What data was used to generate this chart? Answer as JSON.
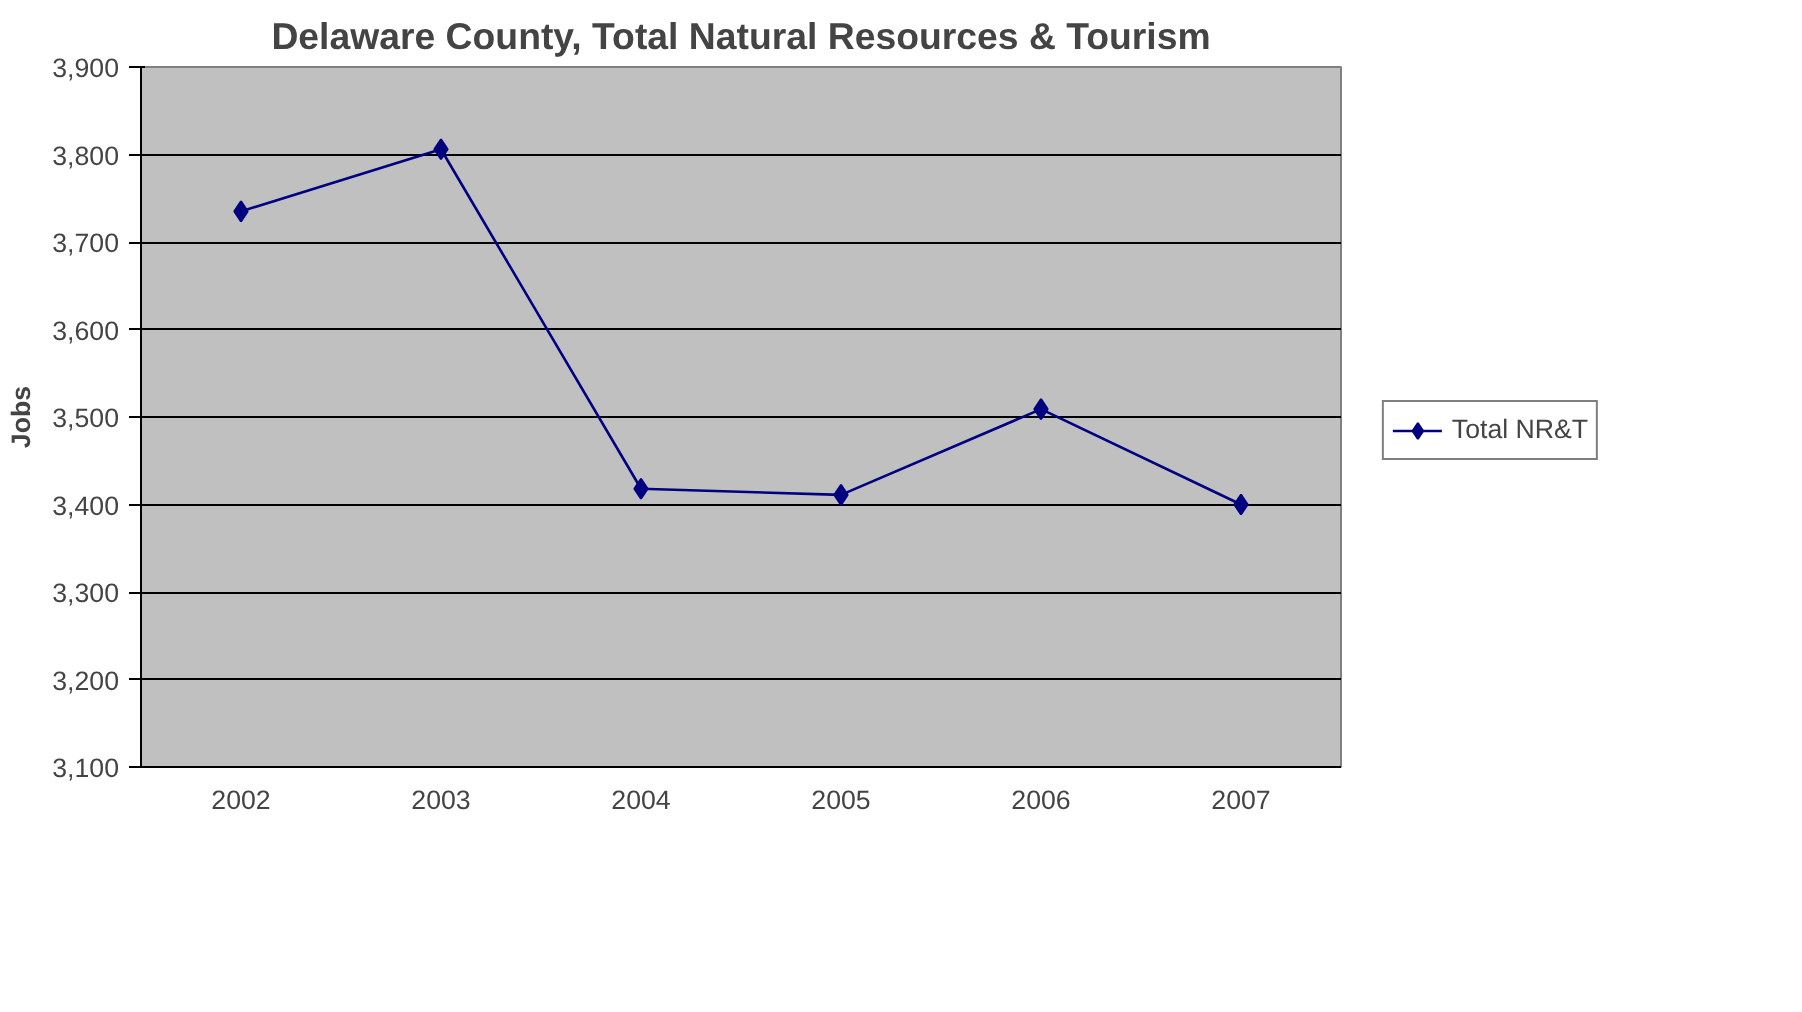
{
  "chart_data": {
    "type": "line",
    "title": "Delaware County, Total Natural Resources & Tourism",
    "ylabel": "Jobs",
    "categories": [
      "2002",
      "2003",
      "2004",
      "2005",
      "2006",
      "2007"
    ],
    "series": [
      {
        "name": "Total NR&T",
        "color": "#000080",
        "values": [
          3735,
          3806,
          3418,
          3411,
          3509,
          3400
        ]
      }
    ],
    "ylim": [
      3100,
      3900
    ],
    "yticks": [
      {
        "value": 3100,
        "label": "3,100"
      },
      {
        "value": 3200,
        "label": "3,200"
      },
      {
        "value": 3300,
        "label": "3,300"
      },
      {
        "value": 3400,
        "label": "3,400"
      },
      {
        "value": 3500,
        "label": "3,500"
      },
      {
        "value": 3600,
        "label": "3,600"
      },
      {
        "value": 3700,
        "label": "3,700"
      },
      {
        "value": 3800,
        "label": "3,800"
      },
      {
        "value": 3900,
        "label": "3,900"
      }
    ],
    "grid": "y",
    "legend": "right",
    "marker": "diamond",
    "line_style": "solid"
  }
}
